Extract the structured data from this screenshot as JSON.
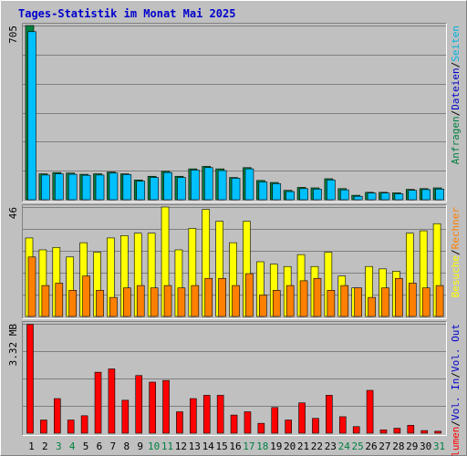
{
  "title": "Tages-Statistik im Monat Mai 2025",
  "colors": {
    "background": "#c0c0c0",
    "title": "#0000cc",
    "hits": "#008040",
    "files": "#00c0ff",
    "pages": "#00b0e0",
    "visits": "#ffff00",
    "sites": "#ff8000",
    "volume": "#ff0000",
    "day_weekday": "#000000",
    "day_weekend": "#008040"
  },
  "chart_data": [
    {
      "type": "bar",
      "panel": "top",
      "max_label": "705",
      "ylim": [
        0,
        705
      ],
      "legend": [
        {
          "text": "Anfragen",
          "color": "#008040"
        },
        {
          "text": "/",
          "color": "#000000"
        },
        {
          "text": "Dateien",
          "color": "#0000cc"
        },
        {
          "text": "/",
          "color": "#000000"
        },
        {
          "text": "Seiten",
          "color": "#00b0e0"
        }
      ],
      "categories": [
        "1",
        "2",
        "3",
        "4",
        "5",
        "6",
        "7",
        "8",
        "9",
        "10",
        "11",
        "12",
        "13",
        "14",
        "15",
        "16",
        "17",
        "18",
        "19",
        "20",
        "21",
        "22",
        "23",
        "24",
        "25",
        "26",
        "27",
        "28",
        "29",
        "30",
        "31"
      ],
      "weekend_days": [
        "3",
        "4",
        "10",
        "11",
        "17",
        "18",
        "24",
        "25",
        "31"
      ],
      "series": [
        {
          "name": "Anfragen",
          "values": [
            705,
            105,
            110,
            108,
            103,
            105,
            112,
            105,
            80,
            95,
            115,
            95,
            125,
            135,
            125,
            90,
            130,
            78,
            70,
            38,
            50,
            48,
            85,
            45,
            18,
            30,
            30,
            28,
            42,
            45,
            48
          ]
        },
        {
          "name": "Dateien",
          "values": [
            680,
            100,
            105,
            103,
            99,
            100,
            108,
            102,
            75,
            90,
            110,
            90,
            120,
            130,
            118,
            87,
            125,
            72,
            65,
            33,
            45,
            43,
            80,
            40,
            14,
            27,
            27,
            24,
            38,
            41,
            43
          ]
        }
      ]
    },
    {
      "type": "bar",
      "panel": "middle",
      "max_label": "46",
      "ylim": [
        0,
        46
      ],
      "legend": [
        {
          "text": "Besuche",
          "color": "#ffff00"
        },
        {
          "text": "/",
          "color": "#000000"
        },
        {
          "text": "Rechner",
          "color": "#ff8000"
        }
      ],
      "categories": [
        "1",
        "2",
        "3",
        "4",
        "5",
        "6",
        "7",
        "8",
        "9",
        "10",
        "11",
        "12",
        "13",
        "14",
        "15",
        "16",
        "17",
        "18",
        "19",
        "20",
        "21",
        "22",
        "23",
        "24",
        "25",
        "26",
        "27",
        "28",
        "29",
        "30",
        "31"
      ],
      "series": [
        {
          "name": "Besuche",
          "values": [
            33,
            28,
            29,
            25,
            31,
            27,
            33,
            34,
            35,
            35,
            46,
            28,
            37,
            45,
            40,
            31,
            40,
            23,
            22,
            21,
            26,
            21,
            27,
            17,
            12,
            21,
            20,
            19,
            35,
            36,
            39
          ]
        },
        {
          "name": "Rechner",
          "values": [
            25,
            13,
            14,
            11,
            17,
            11,
            8,
            12,
            13,
            12,
            13,
            12,
            13,
            16,
            16,
            13,
            18,
            9,
            11,
            13,
            15,
            16,
            11,
            13,
            12,
            8,
            12,
            16,
            14,
            12,
            13
          ]
        }
      ]
    },
    {
      "type": "bar",
      "panel": "bottom",
      "max_label": "3.32 MB",
      "ylim": [
        0,
        3.32
      ],
      "legend": [
        {
          "text": "Volumen",
          "color": "#ff0000"
        },
        {
          "text": "/",
          "color": "#000000"
        },
        {
          "text": "Vol. In",
          "color": "#0000cc"
        },
        {
          "text": "/",
          "color": "#000000"
        },
        {
          "text": "Vol. Out",
          "color": "#0000cc"
        }
      ],
      "categories": [
        "1",
        "2",
        "3",
        "4",
        "5",
        "6",
        "7",
        "8",
        "9",
        "10",
        "11",
        "12",
        "13",
        "14",
        "15",
        "16",
        "17",
        "18",
        "19",
        "20",
        "21",
        "22",
        "23",
        "24",
        "25",
        "26",
        "27",
        "28",
        "29",
        "30",
        "31"
      ],
      "series": [
        {
          "name": "Volumen",
          "values": [
            3.3,
            0.4,
            1.05,
            0.4,
            0.53,
            1.85,
            1.95,
            1.0,
            1.75,
            1.55,
            1.6,
            0.65,
            1.05,
            1.15,
            1.15,
            0.55,
            0.65,
            0.3,
            0.78,
            0.4,
            0.92,
            0.45,
            1.15,
            0.5,
            0.2,
            1.3,
            0.1,
            0.15,
            0.24,
            0.08,
            0.06
          ]
        }
      ]
    }
  ]
}
